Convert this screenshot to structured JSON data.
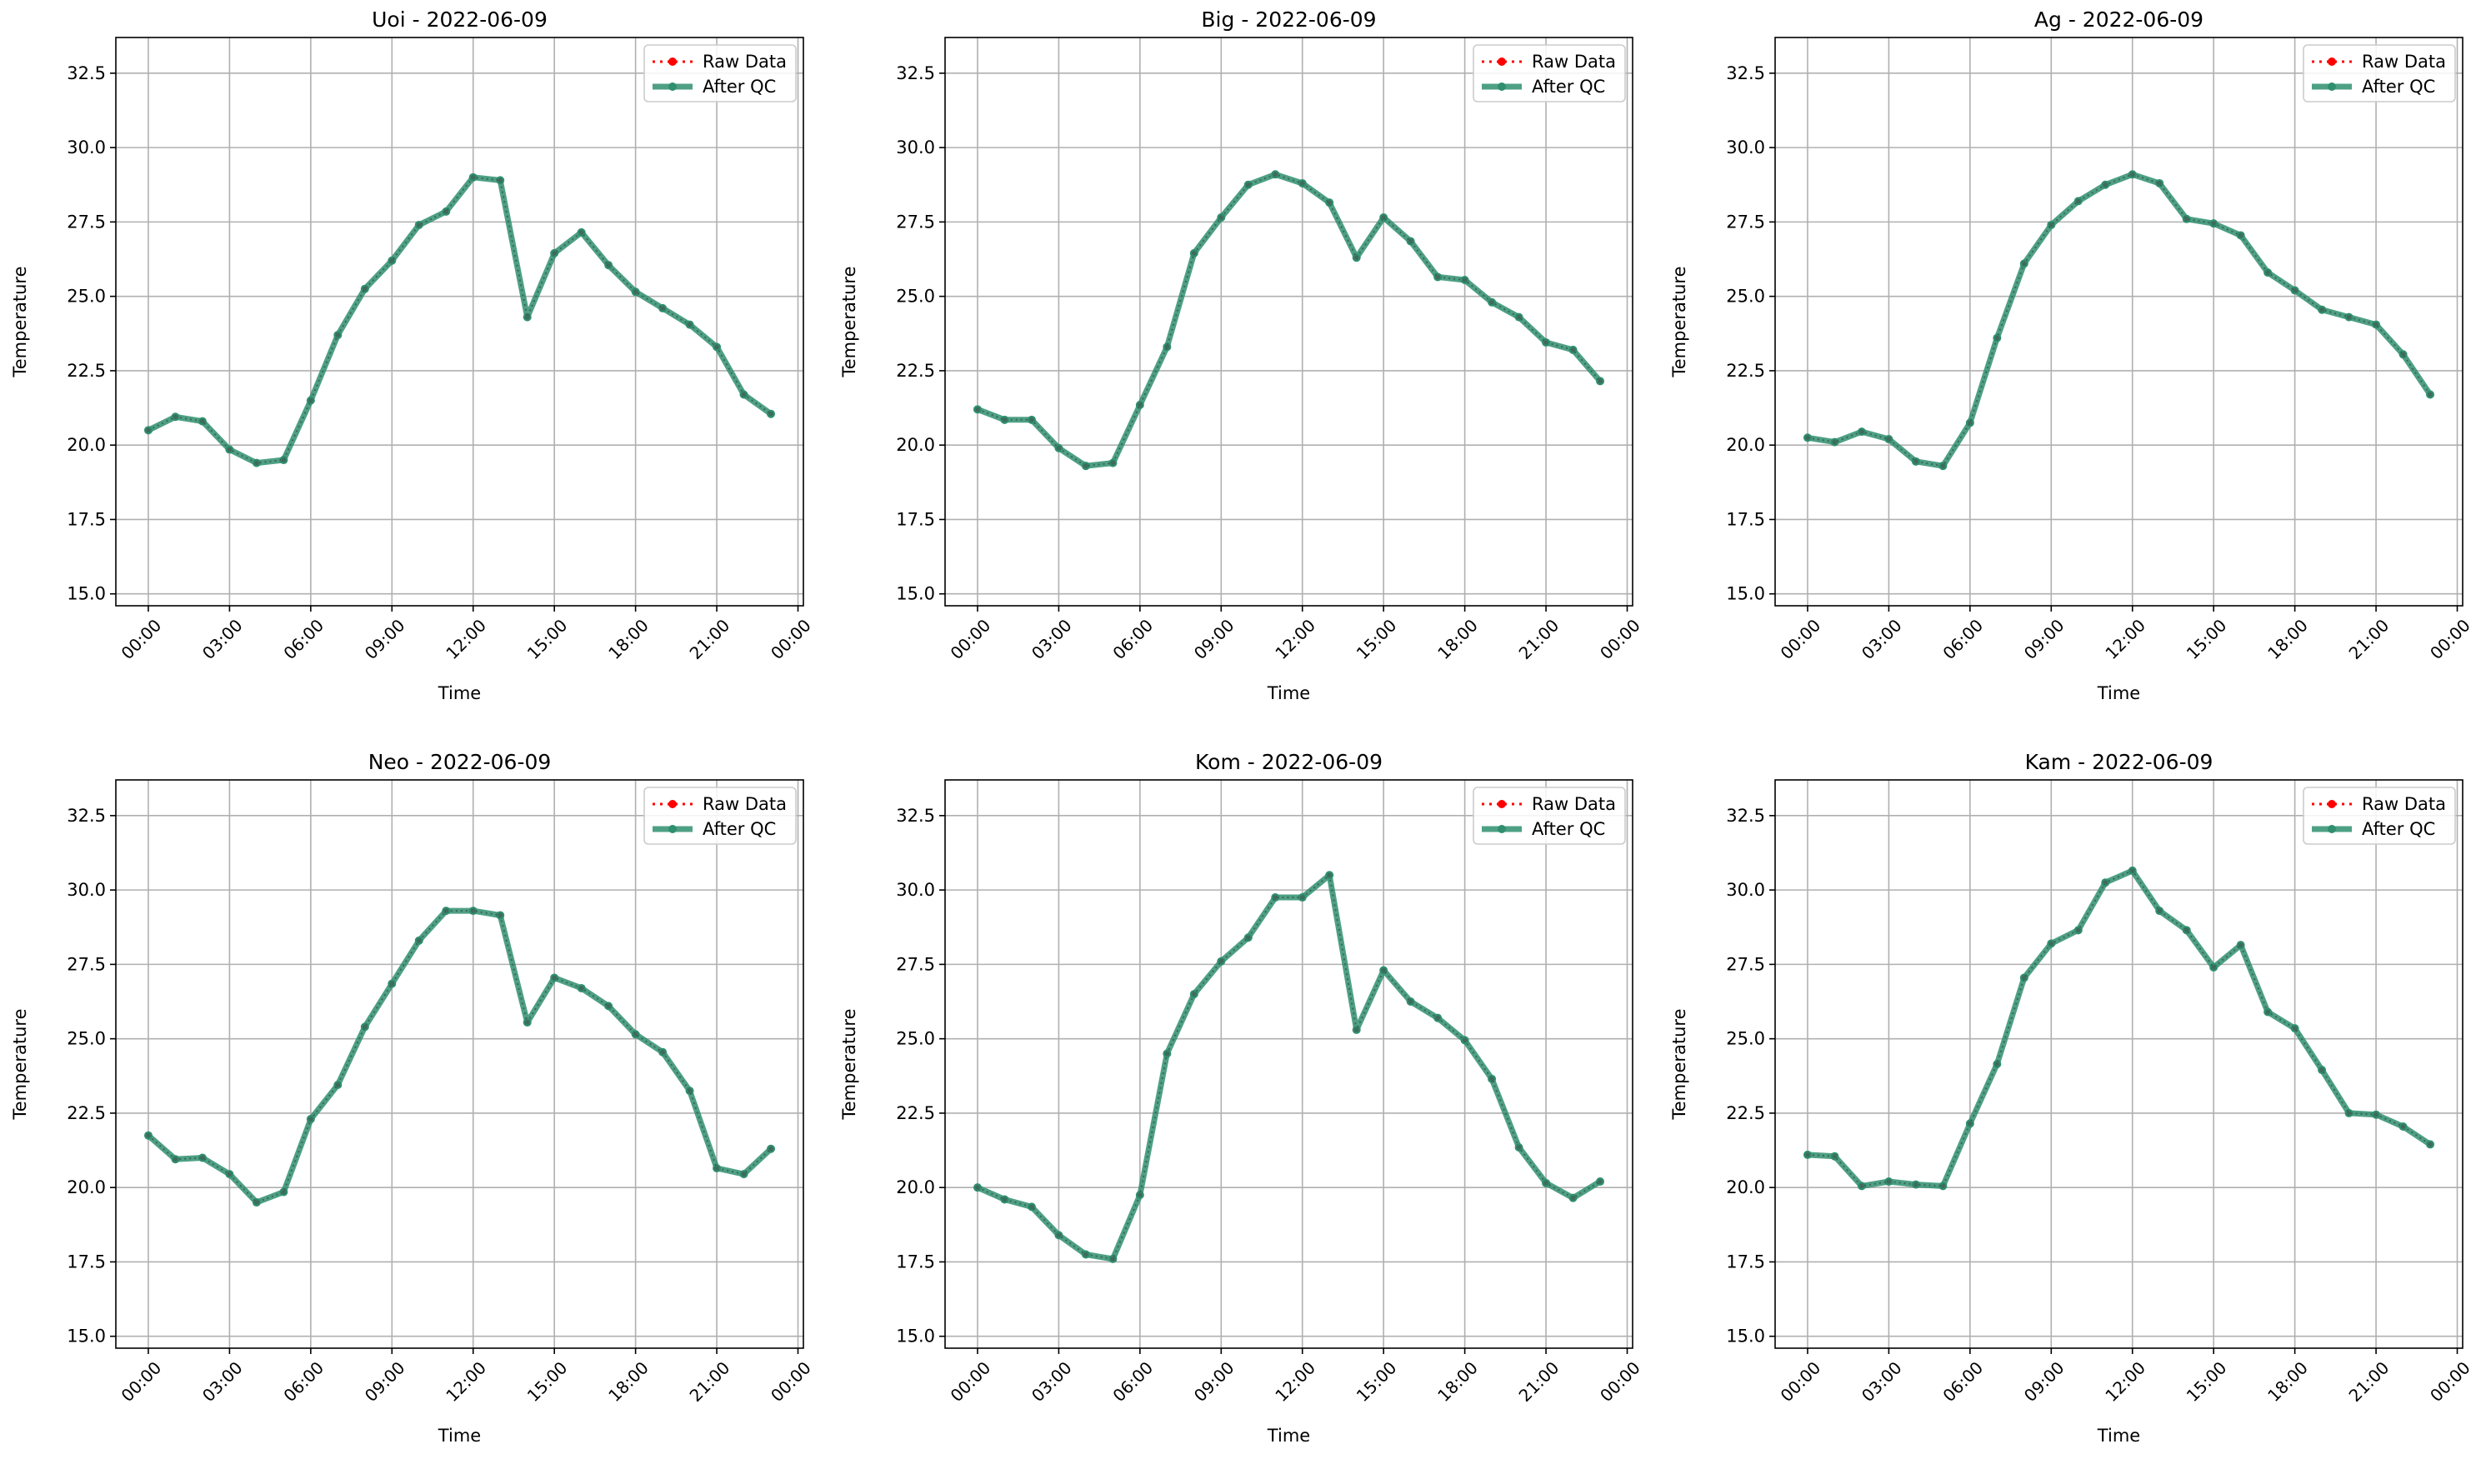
{
  "colors": {
    "raw": "#ff0000",
    "qc": "#2f8f6f",
    "grid": "#b0b0b0",
    "axis": "#000000"
  },
  "chart_data": [
    {
      "type": "line",
      "title": "Uoi - 2022-06-09",
      "xlabel": "Time",
      "ylabel": "Temperature",
      "xlim": [
        -1.2,
        24.2
      ],
      "ylim": [
        14.6,
        33.7
      ],
      "x_ticks": [
        0,
        3,
        6,
        9,
        12,
        15,
        18,
        21,
        24
      ],
      "x_tick_labels": [
        "00:00",
        "03:00",
        "06:00",
        "09:00",
        "12:00",
        "15:00",
        "18:00",
        "21:00",
        "00:00"
      ],
      "y_ticks": [
        15.0,
        17.5,
        20.0,
        22.5,
        25.0,
        27.5,
        30.0,
        32.5
      ],
      "y_tick_labels": [
        "15.0",
        "17.5",
        "20.0",
        "22.5",
        "25.0",
        "27.5",
        "30.0",
        "32.5"
      ],
      "grid": true,
      "legend_position": "top-right",
      "x": [
        0,
        1,
        2,
        3,
        4,
        5,
        6,
        7,
        8,
        9,
        10,
        11,
        12,
        13,
        14,
        15,
        16,
        17,
        18,
        19,
        20,
        21,
        22,
        23
      ],
      "series": [
        {
          "name": "Raw Data",
          "values": [
            20.5,
            20.95,
            20.8,
            19.85,
            19.4,
            19.5,
            21.5,
            23.7,
            25.25,
            26.2,
            27.4,
            27.85,
            29.0,
            28.9,
            24.3,
            26.45,
            27.15,
            26.05,
            25.15,
            24.6,
            24.05,
            23.3,
            21.7,
            21.05
          ]
        },
        {
          "name": "After QC",
          "values": [
            20.5,
            20.95,
            20.8,
            19.85,
            19.4,
            19.5,
            21.5,
            23.7,
            25.25,
            26.2,
            27.4,
            27.85,
            29.0,
            28.9,
            24.3,
            26.45,
            27.15,
            26.05,
            25.15,
            24.6,
            24.05,
            23.3,
            21.7,
            21.05
          ]
        }
      ]
    },
    {
      "type": "line",
      "title": "Big - 2022-06-09",
      "xlabel": "Time",
      "ylabel": "Temperature",
      "xlim": [
        -1.2,
        24.2
      ],
      "ylim": [
        14.6,
        33.7
      ],
      "x_ticks": [
        0,
        3,
        6,
        9,
        12,
        15,
        18,
        21,
        24
      ],
      "x_tick_labels": [
        "00:00",
        "03:00",
        "06:00",
        "09:00",
        "12:00",
        "15:00",
        "18:00",
        "21:00",
        "00:00"
      ],
      "y_ticks": [
        15.0,
        17.5,
        20.0,
        22.5,
        25.0,
        27.5,
        30.0,
        32.5
      ],
      "y_tick_labels": [
        "15.0",
        "17.5",
        "20.0",
        "22.5",
        "25.0",
        "27.5",
        "30.0",
        "32.5"
      ],
      "grid": true,
      "legend_position": "top-right",
      "x": [
        0,
        1,
        2,
        3,
        4,
        5,
        6,
        7,
        8,
        9,
        10,
        11,
        12,
        13,
        14,
        15,
        16,
        17,
        18,
        19,
        20,
        21,
        22,
        23
      ],
      "series": [
        {
          "name": "Raw Data",
          "values": [
            21.2,
            20.85,
            20.85,
            19.9,
            19.3,
            19.4,
            21.35,
            23.3,
            26.45,
            27.65,
            28.75,
            29.1,
            28.8,
            28.15,
            26.3,
            27.65,
            26.85,
            25.65,
            25.55,
            24.8,
            24.3,
            23.45,
            23.2,
            22.15
          ]
        },
        {
          "name": "After QC",
          "values": [
            21.2,
            20.85,
            20.85,
            19.9,
            19.3,
            19.4,
            21.35,
            23.3,
            26.45,
            27.65,
            28.75,
            29.1,
            28.8,
            28.15,
            26.3,
            27.65,
            26.85,
            25.65,
            25.55,
            24.8,
            24.3,
            23.45,
            23.2,
            22.15
          ]
        }
      ]
    },
    {
      "type": "line",
      "title": "Ag - 2022-06-09",
      "xlabel": "Time",
      "ylabel": "Temperature",
      "xlim": [
        -1.2,
        24.2
      ],
      "ylim": [
        14.6,
        33.7
      ],
      "x_ticks": [
        0,
        3,
        6,
        9,
        12,
        15,
        18,
        21,
        24
      ],
      "x_tick_labels": [
        "00:00",
        "03:00",
        "06:00",
        "09:00",
        "12:00",
        "15:00",
        "18:00",
        "21:00",
        "00:00"
      ],
      "y_ticks": [
        15.0,
        17.5,
        20.0,
        22.5,
        25.0,
        27.5,
        30.0,
        32.5
      ],
      "y_tick_labels": [
        "15.0",
        "17.5",
        "20.0",
        "22.5",
        "25.0",
        "27.5",
        "30.0",
        "32.5"
      ],
      "grid": true,
      "legend_position": "top-right",
      "x": [
        0,
        1,
        2,
        3,
        4,
        5,
        6,
        7,
        8,
        9,
        10,
        11,
        12,
        13,
        14,
        15,
        16,
        17,
        18,
        19,
        20,
        21,
        22,
        23
      ],
      "series": [
        {
          "name": "Raw Data",
          "values": [
            20.25,
            20.1,
            20.45,
            20.2,
            19.45,
            19.3,
            20.75,
            23.6,
            26.1,
            27.4,
            28.2,
            28.75,
            29.1,
            28.8,
            27.6,
            27.45,
            27.05,
            25.8,
            25.2,
            24.55,
            24.3,
            24.05,
            23.05,
            21.7
          ]
        },
        {
          "name": "After QC",
          "values": [
            20.25,
            20.1,
            20.45,
            20.2,
            19.45,
            19.3,
            20.75,
            23.6,
            26.1,
            27.4,
            28.2,
            28.75,
            29.1,
            28.8,
            27.6,
            27.45,
            27.05,
            25.8,
            25.2,
            24.55,
            24.3,
            24.05,
            23.05,
            21.7
          ]
        }
      ]
    },
    {
      "type": "line",
      "title": "Neo - 2022-06-09",
      "xlabel": "Time",
      "ylabel": "Temperature",
      "xlim": [
        -1.2,
        24.2
      ],
      "ylim": [
        14.6,
        33.7
      ],
      "x_ticks": [
        0,
        3,
        6,
        9,
        12,
        15,
        18,
        21,
        24
      ],
      "x_tick_labels": [
        "00:00",
        "03:00",
        "06:00",
        "09:00",
        "12:00",
        "15:00",
        "18:00",
        "21:00",
        "00:00"
      ],
      "y_ticks": [
        15.0,
        17.5,
        20.0,
        22.5,
        25.0,
        27.5,
        30.0,
        32.5
      ],
      "y_tick_labels": [
        "15.0",
        "17.5",
        "20.0",
        "22.5",
        "25.0",
        "27.5",
        "30.0",
        "32.5"
      ],
      "grid": true,
      "legend_position": "top-right",
      "x": [
        0,
        1,
        2,
        3,
        4,
        5,
        6,
        7,
        8,
        9,
        10,
        11,
        12,
        13,
        14,
        15,
        16,
        17,
        18,
        19,
        20,
        21,
        22,
        23
      ],
      "series": [
        {
          "name": "Raw Data",
          "values": [
            21.75,
            20.95,
            21.0,
            20.45,
            19.5,
            19.85,
            22.3,
            23.45,
            25.4,
            26.85,
            28.3,
            29.3,
            29.3,
            29.15,
            25.55,
            27.05,
            26.7,
            26.1,
            25.15,
            24.55,
            23.25,
            20.65,
            20.45,
            21.3
          ]
        },
        {
          "name": "After QC",
          "values": [
            21.75,
            20.95,
            21.0,
            20.45,
            19.5,
            19.85,
            22.3,
            23.45,
            25.4,
            26.85,
            28.3,
            29.3,
            29.3,
            29.15,
            25.55,
            27.05,
            26.7,
            26.1,
            25.15,
            24.55,
            23.25,
            20.65,
            20.45,
            21.3
          ]
        }
      ]
    },
    {
      "type": "line",
      "title": "Kom - 2022-06-09",
      "xlabel": "Time",
      "ylabel": "Temperature",
      "xlim": [
        -1.2,
        24.2
      ],
      "ylim": [
        14.6,
        33.7
      ],
      "x_ticks": [
        0,
        3,
        6,
        9,
        12,
        15,
        18,
        21,
        24
      ],
      "x_tick_labels": [
        "00:00",
        "03:00",
        "06:00",
        "09:00",
        "12:00",
        "15:00",
        "18:00",
        "21:00",
        "00:00"
      ],
      "y_ticks": [
        15.0,
        17.5,
        20.0,
        22.5,
        25.0,
        27.5,
        30.0,
        32.5
      ],
      "y_tick_labels": [
        "15.0",
        "17.5",
        "20.0",
        "22.5",
        "25.0",
        "27.5",
        "30.0",
        "32.5"
      ],
      "grid": true,
      "legend_position": "top-right",
      "x": [
        0,
        1,
        2,
        3,
        4,
        5,
        6,
        7,
        8,
        9,
        10,
        11,
        12,
        13,
        14,
        15,
        16,
        17,
        18,
        19,
        20,
        21,
        22,
        23
      ],
      "series": [
        {
          "name": "Raw Data",
          "values": [
            20.0,
            19.6,
            19.35,
            18.4,
            17.75,
            17.6,
            19.75,
            24.5,
            26.5,
            27.6,
            28.4,
            29.75,
            29.75,
            30.5,
            25.3,
            27.3,
            26.25,
            25.7,
            24.95,
            23.65,
            21.35,
            20.15,
            19.65,
            20.2
          ]
        },
        {
          "name": "After QC",
          "values": [
            20.0,
            19.6,
            19.35,
            18.4,
            17.75,
            17.6,
            19.75,
            24.5,
            26.5,
            27.6,
            28.4,
            29.75,
            29.75,
            30.5,
            25.3,
            27.3,
            26.25,
            25.7,
            24.95,
            23.65,
            21.35,
            20.15,
            19.65,
            20.2
          ]
        }
      ]
    },
    {
      "type": "line",
      "title": "Kam - 2022-06-09",
      "xlabel": "Time",
      "ylabel": "Temperature",
      "xlim": [
        -1.2,
        24.2
      ],
      "ylim": [
        14.6,
        33.7
      ],
      "x_ticks": [
        0,
        3,
        6,
        9,
        12,
        15,
        18,
        21,
        24
      ],
      "x_tick_labels": [
        "00:00",
        "03:00",
        "06:00",
        "09:00",
        "12:00",
        "15:00",
        "18:00",
        "21:00",
        "00:00"
      ],
      "y_ticks": [
        15.0,
        17.5,
        20.0,
        22.5,
        25.0,
        27.5,
        30.0,
        32.5
      ],
      "y_tick_labels": [
        "15.0",
        "17.5",
        "20.0",
        "22.5",
        "25.0",
        "27.5",
        "30.0",
        "32.5"
      ],
      "grid": true,
      "legend_position": "top-right",
      "x": [
        0,
        1,
        2,
        3,
        4,
        5,
        6,
        7,
        8,
        9,
        10,
        11,
        12,
        13,
        14,
        15,
        16,
        17,
        18,
        19,
        20,
        21,
        22,
        23
      ],
      "series": [
        {
          "name": "Raw Data",
          "values": [
            21.1,
            21.05,
            20.05,
            20.2,
            20.1,
            20.05,
            22.15,
            24.15,
            27.05,
            28.2,
            28.65,
            30.25,
            30.65,
            29.3,
            28.65,
            27.4,
            28.15,
            25.9,
            25.35,
            23.95,
            22.5,
            22.45,
            22.05,
            21.45
          ]
        },
        {
          "name": "After QC",
          "values": [
            21.1,
            21.05,
            20.05,
            20.2,
            20.1,
            20.05,
            22.15,
            24.15,
            27.05,
            28.2,
            28.65,
            30.25,
            30.65,
            29.3,
            28.65,
            27.4,
            28.15,
            25.9,
            25.35,
            23.95,
            22.5,
            22.45,
            22.05,
            21.45
          ]
        }
      ]
    }
  ]
}
